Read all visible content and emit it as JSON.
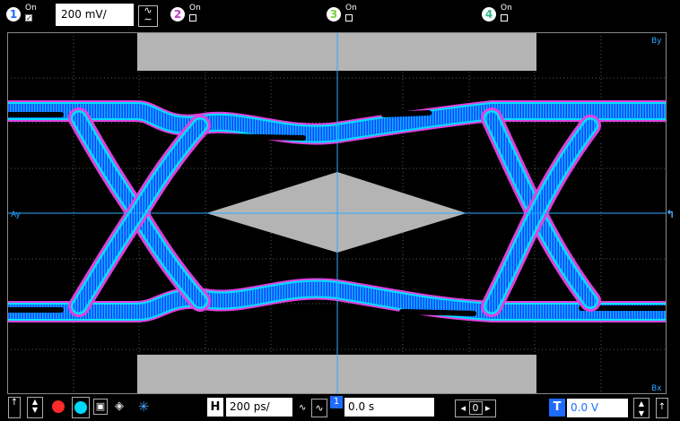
{
  "channels": [
    {
      "id": "1",
      "on_label": "On",
      "checked": true,
      "color": "#1e6bff"
    },
    {
      "id": "2",
      "on_label": "On",
      "checked": false,
      "color": "#c23cc2"
    },
    {
      "id": "3",
      "on_label": "On",
      "checked": false,
      "color": "#7ad23a"
    },
    {
      "id": "4",
      "on_label": "On",
      "checked": false,
      "color": "#2fb88a"
    }
  ],
  "vertical_scale": "200 mV/",
  "markers": {
    "ay": "Ay",
    "by": "By",
    "bx": "Bx"
  },
  "horizontal": {
    "label": "H",
    "scale": "200 ps/",
    "position": "0.0 s"
  },
  "trigger": {
    "label": "T",
    "level": "0.0 V"
  },
  "nav": {
    "value": "0"
  },
  "colors": {
    "grid": "#5a5a5a",
    "axis": "#2aa8ff",
    "mask": "#b4b4b4",
    "trace_outer": "#e040e0",
    "trace_mid": "#00e0ff",
    "trace_inner": "#1a4cff"
  }
}
